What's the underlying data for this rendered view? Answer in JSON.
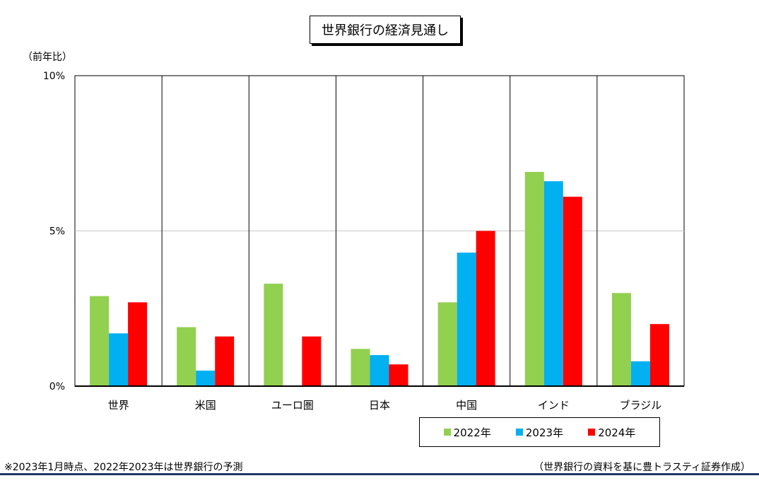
{
  "chart_data": {
    "type": "bar",
    "title": "世界銀行の経済見通し",
    "ylabel": "（前年比）",
    "ylim": [
      0,
      10
    ],
    "yticks": [
      "0%",
      "5%",
      "10%"
    ],
    "categories": [
      "世界",
      "米国",
      "ユーロ圏",
      "日本",
      "中国",
      "インド",
      "ブラジル"
    ],
    "series": [
      {
        "name": "2022年",
        "color": "#92d050",
        "values": [
          2.9,
          1.9,
          3.3,
          1.2,
          2.7,
          6.9,
          3.0
        ]
      },
      {
        "name": "2023年",
        "color": "#00b0f0",
        "values": [
          1.7,
          0.5,
          0.0,
          1.0,
          4.3,
          6.6,
          0.8
        ]
      },
      {
        "name": "2024年",
        "color": "#ff0000",
        "values": [
          2.7,
          1.6,
          1.6,
          0.7,
          5.0,
          6.1,
          2.0
        ]
      }
    ],
    "legend_position": "bottom-right"
  },
  "footnote": "※2023年1月時点、2022年2023年は世界銀行の予測",
  "source": "（世界銀行の資料を基に豊トラスティ証券作成）"
}
